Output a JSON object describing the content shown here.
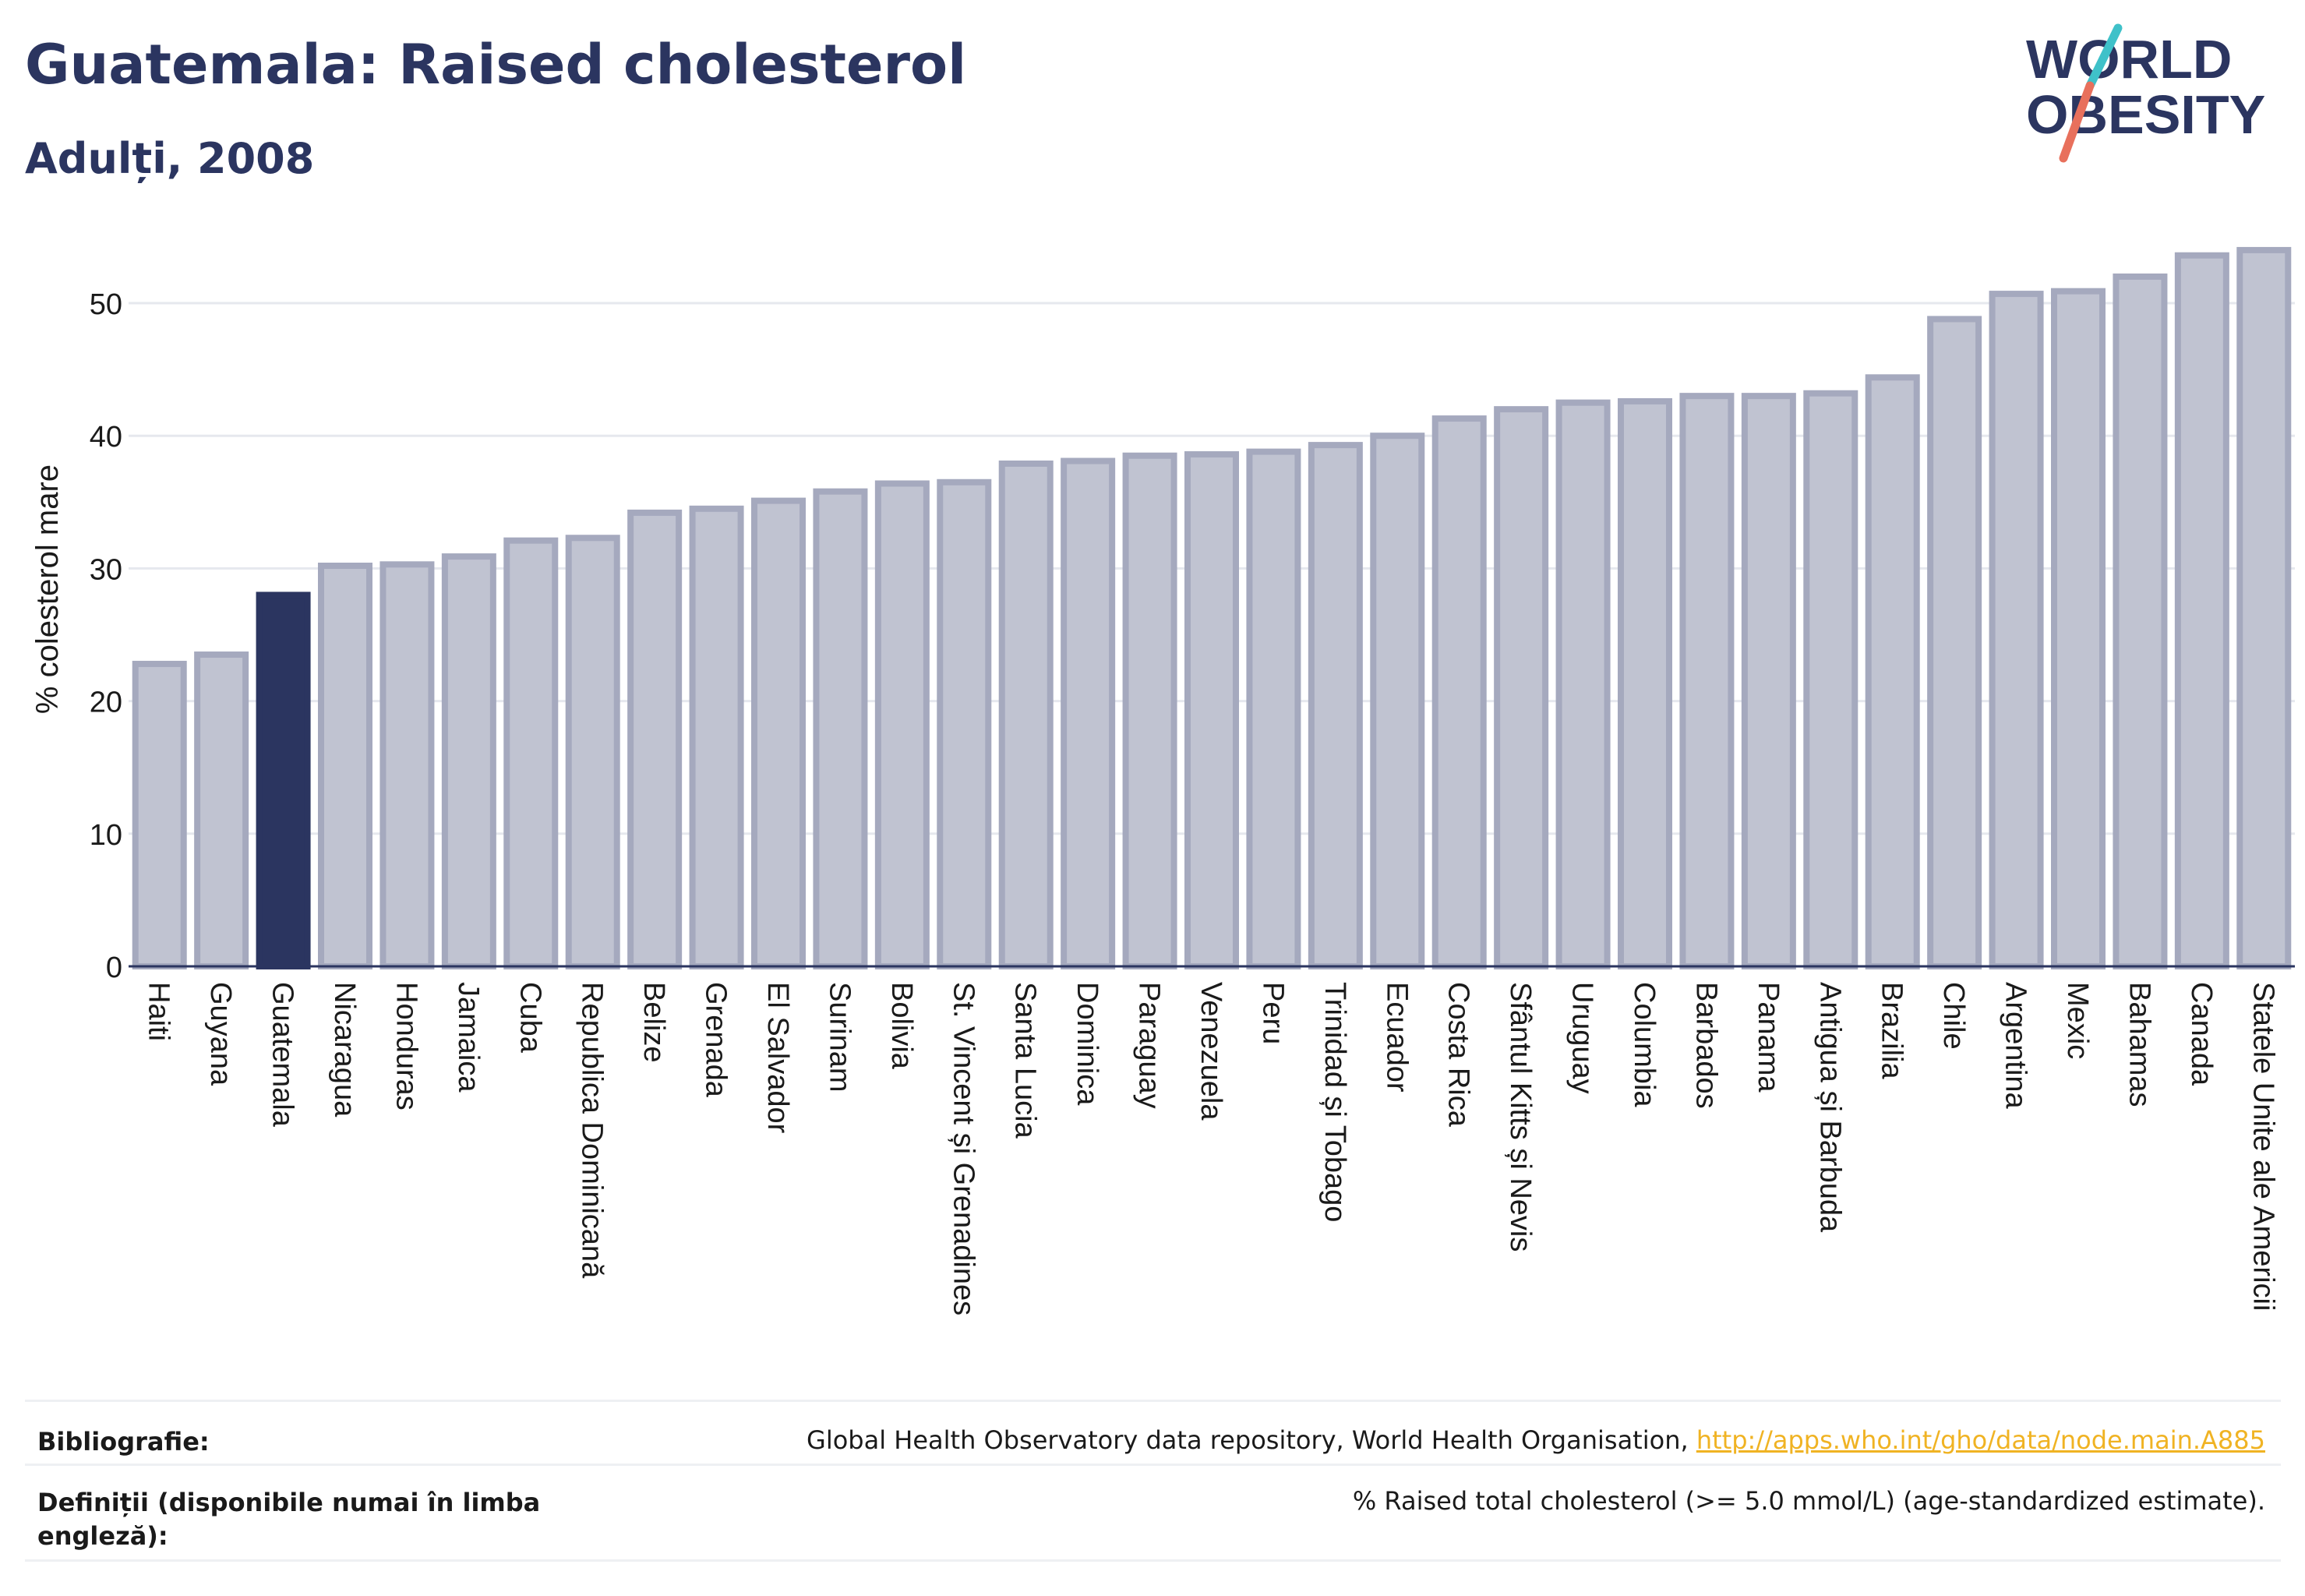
{
  "header": {
    "title": "Guatemala: Raised cholesterol",
    "subtitle": "Adulți, 2008",
    "logo_line1": "WORLD",
    "logo_line2": "OBESITY"
  },
  "colors": {
    "highlight": "#2b3560",
    "bar_fill": "#c0c3d1",
    "bar_stroke": "#a5a9be",
    "text": "#2b3560",
    "link": "#f0b323",
    "logo_teal": "#3fc1c9",
    "logo_coral": "#e8705c"
  },
  "chart_data": {
    "type": "bar",
    "title": "",
    "xlabel": "",
    "ylabel": "% colesterol mare",
    "ylim": [
      0,
      55
    ],
    "yticks": [
      0,
      10,
      20,
      30,
      40,
      50
    ],
    "grid": true,
    "highlight": "Guatemala",
    "categories": [
      "Haiti",
      "Guyana",
      "Guatemala",
      "Nicaragua",
      "Honduras",
      "Jamaica",
      "Cuba",
      "Republica Dominicană",
      "Belize",
      "Grenada",
      "El Salvador",
      "Surinam",
      "Bolivia",
      "St. Vincent și Grenadines",
      "Santa Lucia",
      "Dominica",
      "Paraguay",
      "Venezuela",
      "Peru",
      "Trinidad și Tobago",
      "Ecuador",
      "Costa Rica",
      "Sfântul Kitts și Nevis",
      "Uruguay",
      "Columbia",
      "Barbados",
      "Panama",
      "Antigua și Barbuda",
      "Brazilia",
      "Chile",
      "Argentina",
      "Mexic",
      "Bahamas",
      "Canada",
      "Statele Unite ale Americii"
    ],
    "values": [
      22.8,
      23.5,
      28.0,
      30.2,
      30.3,
      30.9,
      32.1,
      32.3,
      34.2,
      34.5,
      35.1,
      35.8,
      36.4,
      36.5,
      37.9,
      38.1,
      38.5,
      38.6,
      38.8,
      39.3,
      40.0,
      41.3,
      42.0,
      42.5,
      42.6,
      43.0,
      43.0,
      43.2,
      44.4,
      48.8,
      50.7,
      50.9,
      52.0,
      53.6,
      54.0
    ]
  },
  "footer": {
    "bibliography_label": "Bibliografie:",
    "bibliography_text": "Global Health Observatory data repository, World Health Organisation, ",
    "bibliography_link": "http://apps.who.int/gho/data/node.main.A885",
    "definitions_label": "Definiții (disponibile numai în limba engleză):",
    "definitions_text": "% Raised total cholesterol (>= 5.0 mmol/L) (age-standardized estimate)."
  }
}
